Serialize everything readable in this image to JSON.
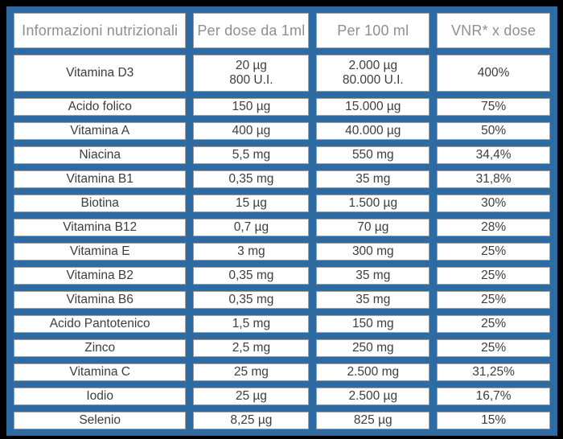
{
  "table": {
    "title": "Informazioni nutrizionali",
    "headers": [
      "Informazioni nutrizionali",
      "Per dose da 1ml",
      "Per 100 ml",
      "VNR* x dose"
    ],
    "rows": [
      {
        "cells": [
          "Vitamina D3",
          [
            "20 µg",
            "800 U.I."
          ],
          [
            "2.000 µg",
            "80.000 U.I."
          ],
          "400%"
        ]
      },
      {
        "cells": [
          "Acido folico",
          "150 µg",
          "15.000 µg",
          "75%"
        ]
      },
      {
        "cells": [
          "Vitamina A",
          "400 µg",
          "40.000 µg",
          "50%"
        ]
      },
      {
        "cells": [
          "Niacina",
          "5,5 mg",
          "550 mg",
          "34,4%"
        ]
      },
      {
        "cells": [
          "Vitamina B1",
          "0,35 mg",
          "35 mg",
          "31,8%"
        ]
      },
      {
        "cells": [
          "Biotina",
          "15 µg",
          "1.500 µg",
          "30%"
        ]
      },
      {
        "cells": [
          "Vitamina B12",
          "0,7 µg",
          "70 µg",
          "28%"
        ]
      },
      {
        "cells": [
          "Vitamina E",
          "3 mg",
          "300 mg",
          "25%"
        ]
      },
      {
        "cells": [
          "Vitamina B2",
          "0,35 mg",
          "35 mg",
          "25%"
        ]
      },
      {
        "cells": [
          "Vitamina B6",
          "0,35 mg",
          "35 mg",
          "25%"
        ]
      },
      {
        "cells": [
          "Acido Pantotenico",
          "1,5 mg",
          "150 mg",
          "25%"
        ]
      },
      {
        "cells": [
          "Zinco",
          "2,5 mg",
          "250 mg",
          "25%"
        ]
      },
      {
        "cells": [
          "Vitamina C",
          "25 mg",
          "2.500 mg",
          "31,25%"
        ]
      },
      {
        "cells": [
          "Iodio",
          "25 µg",
          "2.500 µg",
          "16,7%"
        ]
      },
      {
        "cells": [
          "Selenio",
          "8,25 µg",
          "825 µg",
          "15%"
        ]
      }
    ],
    "column_semantic_names": [
      "nutrient-name",
      "per-dose-value",
      "per-100ml-value",
      "vnr-value"
    ]
  },
  "colors": {
    "frame_background": "#000000",
    "table_background": "#2E6BA3",
    "cell_background": "#FFFFFF",
    "cell_border": "#9E9E9E",
    "header_text": "#8F8F8F",
    "body_text": "#3D3D3D"
  }
}
